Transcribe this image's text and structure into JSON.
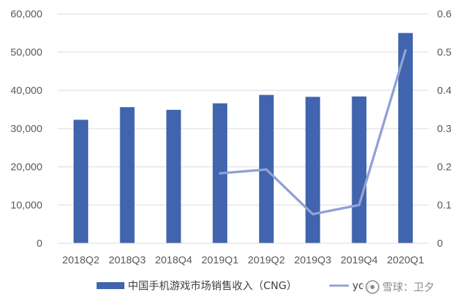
{
  "chart_data": {
    "type": "bar",
    "categories": [
      "2018Q2",
      "2018Q3",
      "2018Q4",
      "2019Q1",
      "2019Q2",
      "2019Q3",
      "2019Q4",
      "2020Q1"
    ],
    "series": [
      {
        "name": "中国手机游戏市场销售收入（CNG）",
        "type": "bar",
        "axis": "left",
        "color": "#4064ad",
        "values": [
          32300,
          35600,
          34900,
          36600,
          38800,
          38300,
          38400,
          55000
        ]
      },
      {
        "name": "yoy",
        "type": "line",
        "axis": "right",
        "color": "#8fa2d6",
        "values": [
          null,
          null,
          null,
          0.183,
          0.193,
          0.076,
          0.1,
          0.505
        ]
      }
    ],
    "ylim_left": [
      0,
      60000
    ],
    "ylim_right": [
      0,
      0.6
    ],
    "yticks_left": [
      "0",
      "10,000",
      "20,000",
      "30,000",
      "40,000",
      "50,000",
      "60,000"
    ],
    "yticks_right": [
      "0",
      "0.1",
      "0.2",
      "0.3",
      "0.4",
      "0.5",
      "0.6"
    ],
    "grid": true,
    "legend_position": "bottom"
  },
  "watermark": "雪球：卫夕"
}
